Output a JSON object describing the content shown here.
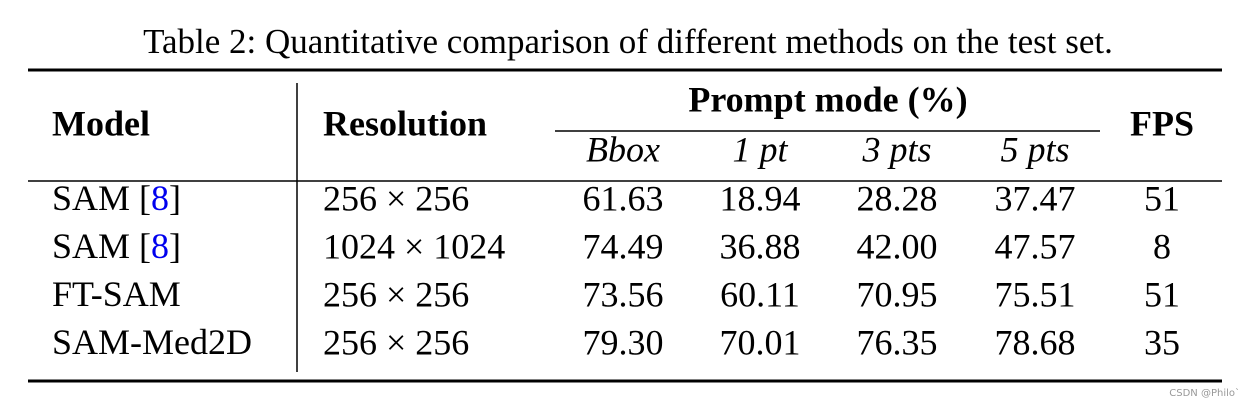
{
  "caption": "Table 2: Quantitative comparison of different methods on the test set.",
  "header": {
    "model": "Model",
    "resolution": "Resolution",
    "prompt_mode": "Prompt mode (%)",
    "prompt_columns": [
      "Bbox",
      "1 pt",
      "3 pts",
      "5 pts"
    ],
    "fps": "FPS"
  },
  "rows": [
    {
      "model": [
        "SAM [",
        "8",
        "]"
      ],
      "resolution": "256 × 256",
      "values": [
        "61.63",
        "18.94",
        "28.28",
        "37.47"
      ],
      "fps": "51"
    },
    {
      "model": [
        "SAM [",
        "8",
        "]"
      ],
      "resolution": "1024 × 1024",
      "values": [
        "74.49",
        "36.88",
        "42.00",
        "47.57"
      ],
      "fps": "8"
    },
    {
      "model": [
        "FT-SAM"
      ],
      "resolution": "256 × 256",
      "values": [
        "73.56",
        "60.11",
        "70.95",
        "75.51"
      ],
      "fps": "51"
    },
    {
      "model": [
        "SAM-Med2D"
      ],
      "resolution": "256 × 256",
      "values": [
        "79.30",
        "70.01",
        "76.35",
        "78.68"
      ],
      "fps": "35"
    }
  ],
  "watermark": "CSDN @Philo`"
}
